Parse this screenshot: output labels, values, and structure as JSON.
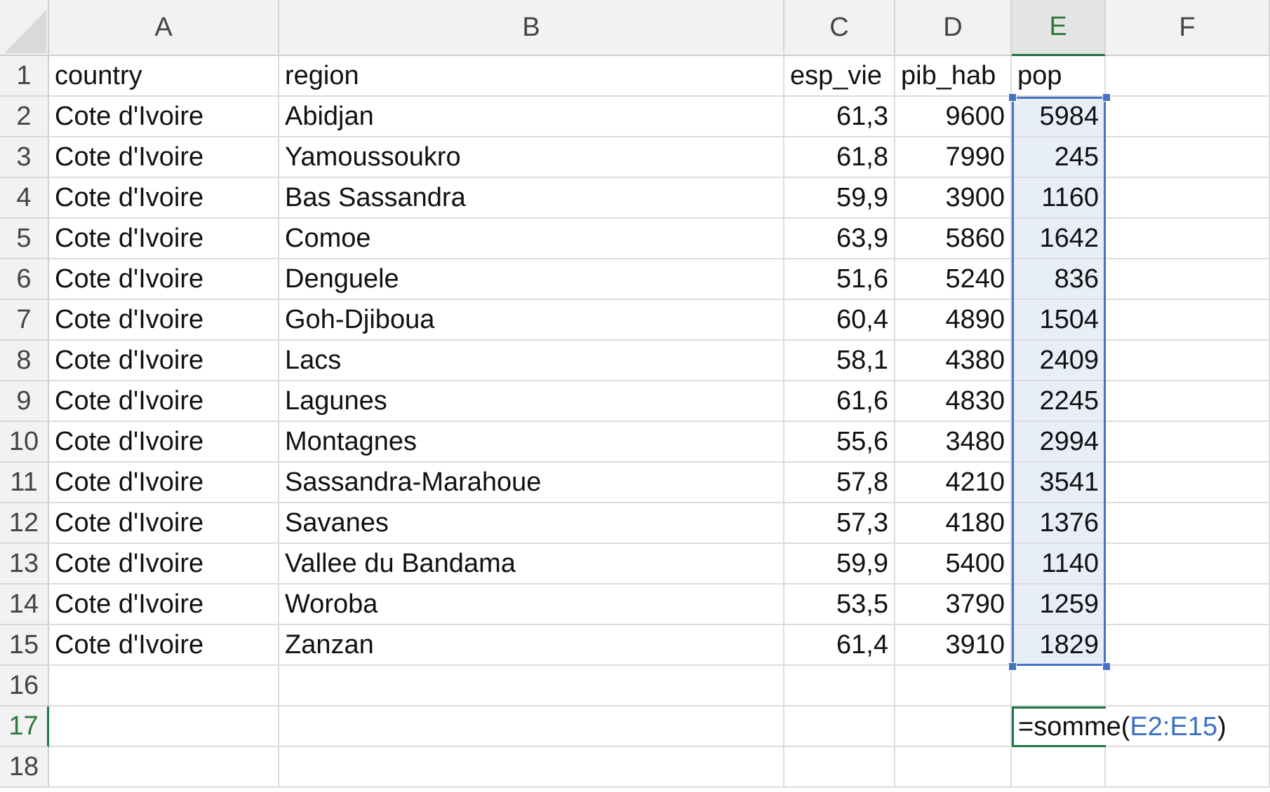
{
  "columns": [
    "A",
    "B",
    "C",
    "D",
    "E",
    "F"
  ],
  "active_column": "E",
  "rows": [
    {
      "n": "1",
      "cells": [
        "country",
        "region",
        "esp_vie",
        "pib_hab",
        "pop",
        ""
      ]
    },
    {
      "n": "2",
      "cells": [
        "Cote d'Ivoire",
        "Abidjan",
        "61,3",
        "9600",
        "5984",
        ""
      ]
    },
    {
      "n": "3",
      "cells": [
        "Cote d'Ivoire",
        "Yamoussoukro",
        "61,8",
        "7990",
        "245",
        ""
      ]
    },
    {
      "n": "4",
      "cells": [
        "Cote d'Ivoire",
        "Bas Sassandra",
        "59,9",
        "3900",
        "1160",
        ""
      ]
    },
    {
      "n": "5",
      "cells": [
        "Cote d'Ivoire",
        "Comoe",
        "63,9",
        "5860",
        "1642",
        ""
      ]
    },
    {
      "n": "6",
      "cells": [
        "Cote d'Ivoire",
        "Denguele",
        "51,6",
        "5240",
        "836",
        ""
      ]
    },
    {
      "n": "7",
      "cells": [
        "Cote d'Ivoire",
        "Goh-Djiboua",
        "60,4",
        "4890",
        "1504",
        ""
      ]
    },
    {
      "n": "8",
      "cells": [
        "Cote d'Ivoire",
        "Lacs",
        "58,1",
        "4380",
        "2409",
        ""
      ]
    },
    {
      "n": "9",
      "cells": [
        "Cote d'Ivoire",
        "Lagunes",
        "61,6",
        "4830",
        "2245",
        ""
      ]
    },
    {
      "n": "10",
      "cells": [
        "Cote d'Ivoire",
        "Montagnes",
        "55,6",
        "3480",
        "2994",
        ""
      ]
    },
    {
      "n": "11",
      "cells": [
        "Cote d'Ivoire",
        "Sassandra-Marahoue",
        "57,8",
        "4210",
        "3541",
        ""
      ]
    },
    {
      "n": "12",
      "cells": [
        "Cote d'Ivoire",
        "Savanes",
        "57,3",
        "4180",
        "1376",
        ""
      ]
    },
    {
      "n": "13",
      "cells": [
        "Cote d'Ivoire",
        "Vallee du Bandama",
        "59,9",
        "5400",
        "1140",
        ""
      ]
    },
    {
      "n": "14",
      "cells": [
        "Cote d'Ivoire",
        "Woroba",
        "53,5",
        "3790",
        "1259",
        ""
      ]
    },
    {
      "n": "15",
      "cells": [
        "Cote d'Ivoire",
        "Zanzan",
        "61,4",
        "3910",
        "1829",
        ""
      ]
    },
    {
      "n": "16",
      "cells": [
        "",
        "",
        "",
        "",
        "",
        ""
      ]
    },
    {
      "n": "17",
      "cells": [
        "",
        "",
        "",
        "",
        "",
        ""
      ]
    },
    {
      "n": "18",
      "cells": [
        "",
        "",
        "",
        "",
        "",
        ""
      ]
    }
  ],
  "active_row": "17",
  "numeric_columns": [
    "C",
    "D",
    "E"
  ],
  "selected_range": "E2:E15",
  "editing_cell": {
    "address": "E17",
    "prefix": "=somme(",
    "reference": "E2:E15",
    "suffix": ")"
  },
  "colors": {
    "accent_green": "#217346",
    "selection_blue": "#4472c4",
    "selection_fill": "#e8eef8",
    "header_bg": "#f2f2f2"
  }
}
